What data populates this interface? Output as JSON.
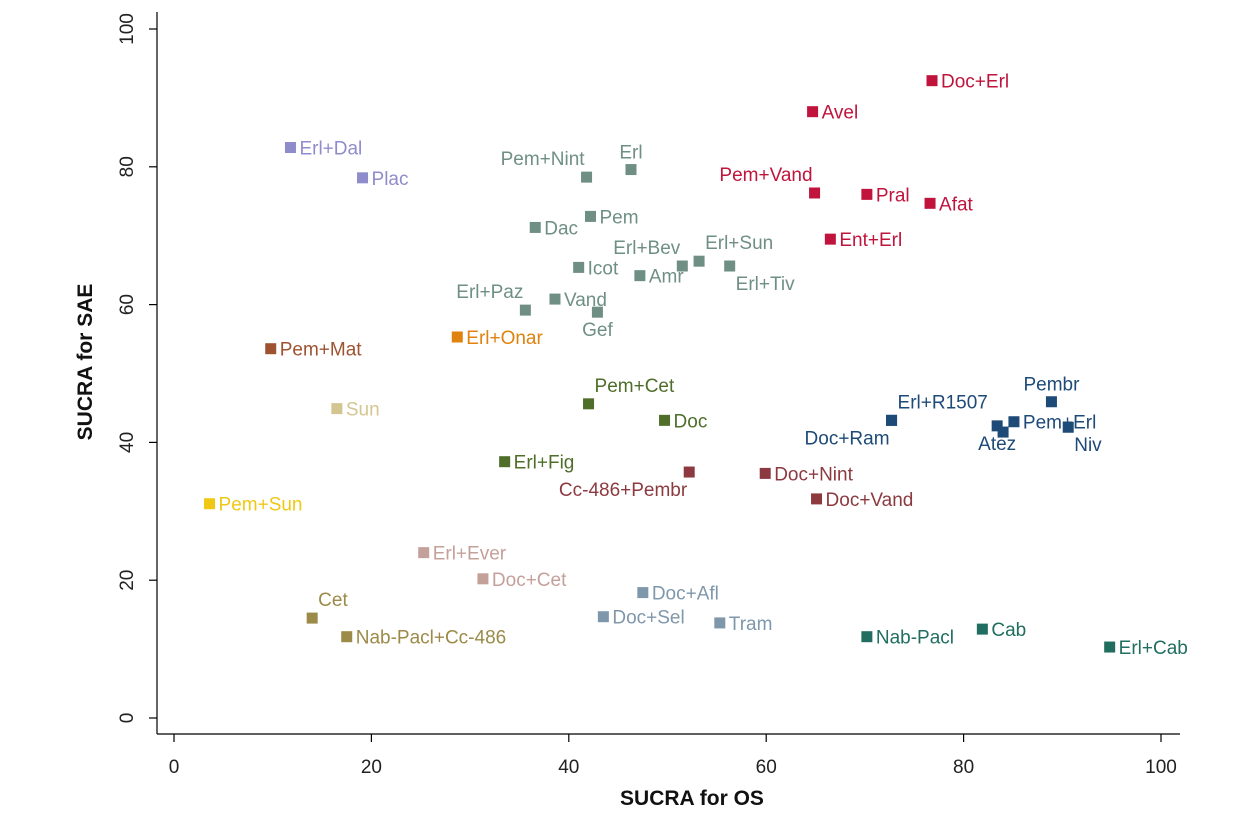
{
  "chart_data": {
    "type": "scatter",
    "title": "",
    "xlabel": "SUCRA for OS",
    "ylabel": "SUCRA for SAE",
    "xlim": [
      0,
      100
    ],
    "ylim": [
      0,
      100
    ],
    "xticks": [
      0,
      20,
      40,
      60,
      80,
      100
    ],
    "yticks": [
      0,
      20,
      40,
      60,
      80,
      100
    ],
    "grid": false,
    "legend": "none",
    "points": [
      {
        "label": "Doc+Erl",
        "x": 76.8,
        "y": 92.5,
        "color": "#c0143c",
        "pos": "right"
      },
      {
        "label": "Avel",
        "x": 64.7,
        "y": 88.0,
        "color": "#c0143c",
        "pos": "right"
      },
      {
        "label": "Pem+Vand",
        "x": 64.9,
        "y": 76.2,
        "color": "#c0143c",
        "pos": "above-left"
      },
      {
        "label": "Pral",
        "x": 70.2,
        "y": 76.0,
        "color": "#c0143c",
        "pos": "right"
      },
      {
        "label": "Afat",
        "x": 76.6,
        "y": 74.7,
        "color": "#c0143c",
        "pos": "right"
      },
      {
        "label": "Ent+Erl",
        "x": 66.5,
        "y": 69.5,
        "color": "#c0143c",
        "pos": "right"
      },
      {
        "label": "Erl+Dal",
        "x": 11.8,
        "y": 82.8,
        "color": "#8f8ccc",
        "pos": "right"
      },
      {
        "label": "Plac",
        "x": 19.1,
        "y": 78.4,
        "color": "#8f8ccc",
        "pos": "right"
      },
      {
        "label": "Pem+Nint",
        "x": 41.8,
        "y": 78.5,
        "color": "#6f8f85",
        "pos": "above-left"
      },
      {
        "label": "Erl",
        "x": 46.3,
        "y": 79.6,
        "color": "#6f8f85",
        "pos": "above"
      },
      {
        "label": "Pem",
        "x": 42.2,
        "y": 72.8,
        "color": "#6f8f85",
        "pos": "right"
      },
      {
        "label": "Dac",
        "x": 36.6,
        "y": 71.2,
        "color": "#6f8f85",
        "pos": "right"
      },
      {
        "label": "Erl+Bev",
        "x": 51.5,
        "y": 65.6,
        "color": "#6f8f85",
        "pos": "above-left"
      },
      {
        "label": "Erl+Sun",
        "x": 53.2,
        "y": 66.3,
        "color": "#6f8f85",
        "pos": "above-right"
      },
      {
        "label": "Erl+Tiv",
        "x": 56.3,
        "y": 65.6,
        "color": "#6f8f85",
        "pos": "below-right"
      },
      {
        "label": "Icot",
        "x": 41.0,
        "y": 65.4,
        "color": "#6f8f85",
        "pos": "right"
      },
      {
        "label": "Amr",
        "x": 47.2,
        "y": 64.2,
        "color": "#6f8f85",
        "pos": "right"
      },
      {
        "label": "Erl+Paz",
        "x": 35.6,
        "y": 59.2,
        "color": "#6f8f85",
        "pos": "above-left"
      },
      {
        "label": "Vand",
        "x": 38.6,
        "y": 60.8,
        "color": "#6f8f85",
        "pos": "right"
      },
      {
        "label": "Gef",
        "x": 42.9,
        "y": 58.9,
        "color": "#6f8f85",
        "pos": "below"
      },
      {
        "label": "Erl+Onar",
        "x": 28.7,
        "y": 55.3,
        "color": "#e0820e",
        "pos": "right"
      },
      {
        "label": "Pem+Mat",
        "x": 9.8,
        "y": 53.6,
        "color": "#9e5230",
        "pos": "right"
      },
      {
        "label": "Sun",
        "x": 16.5,
        "y": 44.9,
        "color": "#d4c690",
        "pos": "right"
      },
      {
        "label": "Pem+Cet",
        "x": 42.0,
        "y": 45.6,
        "color": "#4e6e2a",
        "pos": "above-right"
      },
      {
        "label": "Doc",
        "x": 49.7,
        "y": 43.2,
        "color": "#4e6e2a",
        "pos": "right"
      },
      {
        "label": "Erl+Fig",
        "x": 33.5,
        "y": 37.2,
        "color": "#4e6e2a",
        "pos": "right"
      },
      {
        "label": "Pem+Sun",
        "x": 3.6,
        "y": 31.1,
        "color": "#f0c814",
        "pos": "right"
      },
      {
        "label": "Cc-486+Pembr",
        "x": 52.2,
        "y": 35.7,
        "color": "#8c3a40",
        "pos": "below-left"
      },
      {
        "label": "Doc+Nint",
        "x": 59.9,
        "y": 35.5,
        "color": "#8c3a40",
        "pos": "right"
      },
      {
        "label": "Doc+Vand",
        "x": 65.1,
        "y": 31.8,
        "color": "#8c3a40",
        "pos": "right"
      },
      {
        "label": "Erl+R1507",
        "x": 72.7,
        "y": 43.2,
        "color": "#1e4a78",
        "pos": "above-right"
      },
      {
        "label": "Doc+Ram",
        "x": 72.7,
        "y": 43.2,
        "color": "#1e4a78",
        "pos": "below-left"
      },
      {
        "label": "Pembr",
        "x": 88.9,
        "y": 45.9,
        "color": "#1e4a78",
        "pos": "above"
      },
      {
        "label": "Pem+Erl",
        "x": 85.1,
        "y": 43.0,
        "color": "#1e4a78",
        "pos": "right"
      },
      {
        "label": "Atez",
        "x": 83.4,
        "y": 42.4,
        "color": "#1e4a78",
        "pos": "below"
      },
      {
        "label": "",
        "x": 84.0,
        "y": 41.5,
        "color": "#1e4a78",
        "pos": "none"
      },
      {
        "label": "Niv",
        "x": 90.6,
        "y": 42.2,
        "color": "#1e4a78",
        "pos": "below-right"
      },
      {
        "label": "Erl+Ever",
        "x": 25.3,
        "y": 24.0,
        "color": "#c4a09a",
        "pos": "right"
      },
      {
        "label": "Doc+Cet",
        "x": 31.3,
        "y": 20.2,
        "color": "#c4a09a",
        "pos": "right"
      },
      {
        "label": "Doc+Afl",
        "x": 47.5,
        "y": 18.2,
        "color": "#7f97ab",
        "pos": "right"
      },
      {
        "label": "Doc+Sel",
        "x": 43.5,
        "y": 14.7,
        "color": "#7f97ab",
        "pos": "right"
      },
      {
        "label": "Tram",
        "x": 55.3,
        "y": 13.8,
        "color": "#7f97ab",
        "pos": "right"
      },
      {
        "label": "Cet",
        "x": 14.0,
        "y": 14.5,
        "color": "#9c8a48",
        "pos": "above-right"
      },
      {
        "label": "Nab-Pacl+Cc-486",
        "x": 17.5,
        "y": 11.8,
        "color": "#9c8a48",
        "pos": "right"
      },
      {
        "label": "Nab-Pacl",
        "x": 70.2,
        "y": 11.8,
        "color": "#216e60",
        "pos": "right"
      },
      {
        "label": "Cab",
        "x": 81.9,
        "y": 12.9,
        "color": "#216e60",
        "pos": "right"
      },
      {
        "label": "Erl+Cab",
        "x": 94.8,
        "y": 10.3,
        "color": "#216e60",
        "pos": "right"
      }
    ]
  }
}
